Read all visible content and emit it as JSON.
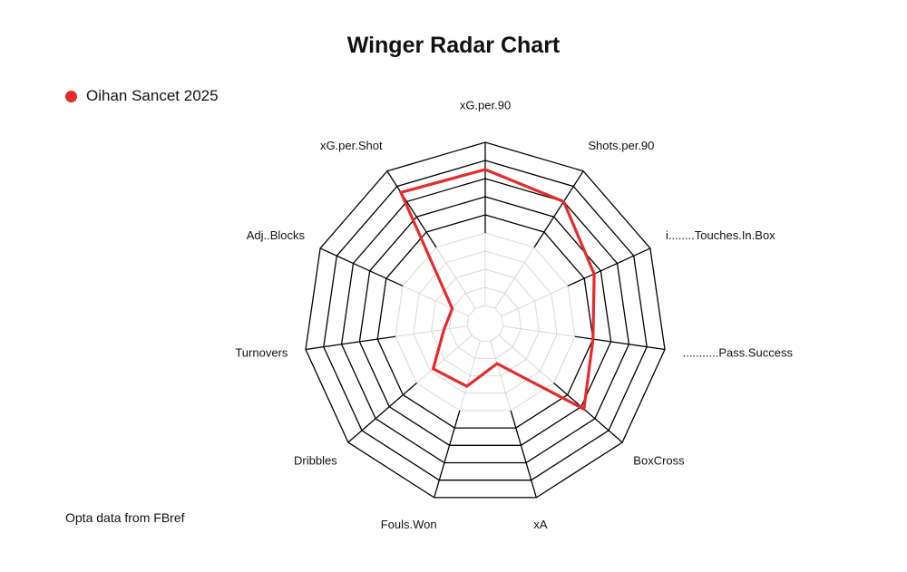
{
  "legend": {
    "series_name": "Oihan Sancet 2025",
    "color": "#e52b2b"
  },
  "source_note": "Opta data from FBref",
  "chart_data": {
    "type": "radar",
    "title": "Winger Radar Chart",
    "axes": [
      "xG.per.90",
      "Shots.per.90",
      "i........Touches.In.Box",
      "...........Pass.Success",
      "BoxCross",
      "xA",
      "Fouls.Won",
      "Dribbles",
      "Turnovers",
      "Adj..Blocks",
      "xG.per.Shot"
    ],
    "rings": 10,
    "series": [
      {
        "name": "Oihan Sancet 2025",
        "values": [
          0.85,
          0.8,
          0.66,
          0.6,
          0.72,
          0.23,
          0.36,
          0.38,
          0.23,
          0.2,
          0.86
        ]
      }
    ],
    "colors": {
      "series": "#e52b2b",
      "outer_grid": "#000000",
      "inner_grid": "#d9d9d9",
      "background": "#ffffff"
    }
  }
}
